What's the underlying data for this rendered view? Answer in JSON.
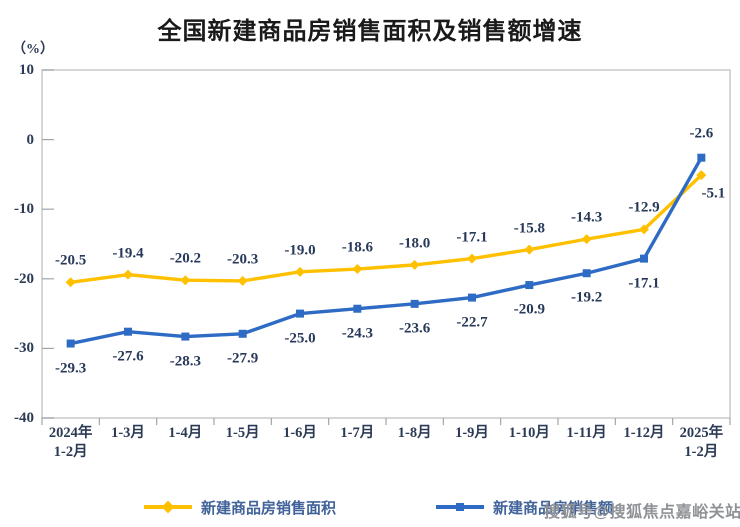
{
  "title": "全国新建商品房销售面积及销售额增速",
  "y_axis_unit": "（%）",
  "watermark": "搜狐号@搜狐焦点嘉峪关站",
  "colors": {
    "area_series": "#FFC000",
    "amount_series": "#2E6BC4",
    "frame": "#C9C9C9",
    "tick": "#9FA6AD",
    "label_text": "#28395A",
    "axis_text": "#2B3A55",
    "legend_text": "#41639A",
    "title_text": "#1A1A1A",
    "watermark_text": "#8F9296"
  },
  "chart_data": {
    "type": "line",
    "title": "全国新建商品房销售面积及销售额增速",
    "xlabel": "",
    "ylabel": "（%）",
    "ylim": [
      -40,
      10
    ],
    "yticks": [
      10,
      0,
      -10,
      -20,
      -30,
      -40
    ],
    "grid": false,
    "legend_position": "bottom",
    "categories": [
      "2024年\n1-2月",
      "1-3月",
      "1-4月",
      "1-5月",
      "1-6月",
      "1-7月",
      "1-8月",
      "1-9月",
      "1-10月",
      "1-11月",
      "1-12月",
      "2025年\n1-2月"
    ],
    "series": [
      {
        "name": "新建商品房销售面积",
        "color": "#FFC000",
        "marker": "diamond",
        "values": [
          -20.5,
          -19.4,
          -20.2,
          -20.3,
          -19.0,
          -18.6,
          -18.0,
          -17.1,
          -15.8,
          -14.3,
          -12.9,
          -5.1
        ],
        "label_offset": {
          "dx": 0,
          "dy": -21
        },
        "label_overrides": {
          "11": {
            "dx": 12,
            "dy": 19
          }
        }
      },
      {
        "name": "新建商品房销售额",
        "color": "#2E6BC4",
        "marker": "square",
        "values": [
          -29.3,
          -27.6,
          -28.3,
          -27.9,
          -25.0,
          -24.3,
          -23.6,
          -22.7,
          -20.9,
          -19.2,
          -17.1,
          -2.6
        ],
        "label_offset": {
          "dx": 0,
          "dy": 25
        },
        "label_overrides": {
          "11": {
            "dx": 0,
            "dy": -24
          }
        }
      }
    ]
  }
}
